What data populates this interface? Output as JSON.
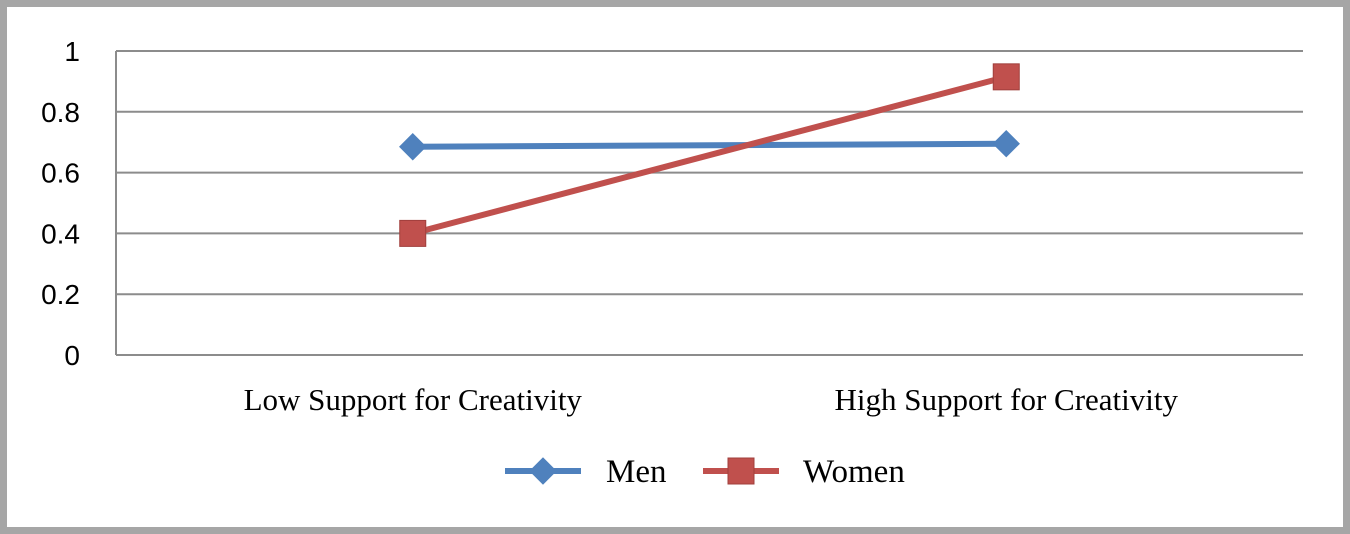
{
  "chart_data": {
    "type": "line",
    "title": "",
    "xlabel": "",
    "ylabel": "",
    "categories": [
      "Low Support for Creativity",
      "High Support for Creativity"
    ],
    "yticks": [
      "0",
      "0.2",
      "0.4",
      "0.6",
      "0.8",
      "1"
    ],
    "ylim": [
      0,
      1
    ],
    "grid": true,
    "legend_position": "bottom",
    "series": [
      {
        "name": "Men",
        "values": [
          0.685,
          0.695
        ],
        "color": "#4f81bd",
        "marker": "diamond"
      },
      {
        "name": "Women",
        "values": [
          0.4,
          0.915
        ],
        "color": "#c0504d",
        "marker": "square"
      }
    ]
  }
}
